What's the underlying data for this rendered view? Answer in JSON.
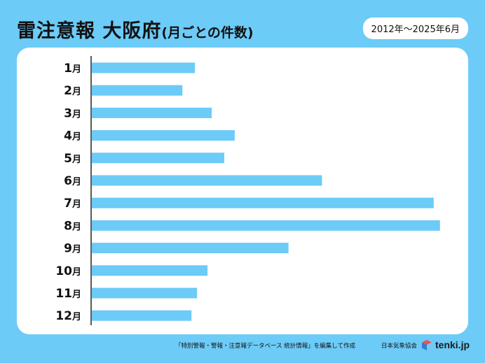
{
  "header": {
    "title_main": "雷注意報 大阪府",
    "title_sub": "(月ごとの件数)",
    "period": "2012年～2025年6月"
  },
  "footer": {
    "source": "「特別警報・警報・注意報データベース 統計情報」を編集して作成",
    "org": "日本気象協会",
    "brand": "tenki.jp"
  },
  "colors": {
    "background": "#6ccbf7",
    "bar": "#6ccbf7",
    "panel": "#ffffff"
  },
  "chart_data": {
    "type": "bar",
    "orientation": "horizontal",
    "categories": [
      "1月",
      "2月",
      "3月",
      "4月",
      "5月",
      "6月",
      "7月",
      "8月",
      "9月",
      "10月",
      "11月",
      "12月"
    ],
    "values": [
      148,
      130,
      172,
      205,
      190,
      330,
      490,
      499,
      282,
      166,
      151,
      143
    ],
    "xlim": [
      0,
      500
    ],
    "title": "",
    "xlabel": "",
    "ylabel": "",
    "grid": false,
    "legend": "none"
  }
}
